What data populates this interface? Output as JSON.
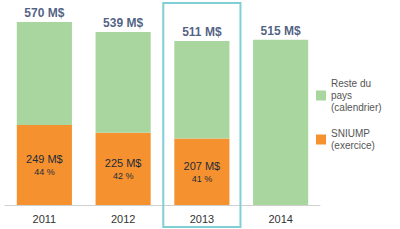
{
  "chart_data": {
    "type": "bar",
    "stacked": true,
    "categories": [
      "2011",
      "2012",
      "2013",
      "2014"
    ],
    "series": [
      {
        "name": "Reste du pays (calendrier)",
        "color": "#a9d69f",
        "values": [
          321,
          314,
          304,
          515
        ]
      },
      {
        "name": "SNIUMP (exercice)",
        "color": "#f5922f",
        "values": [
          249,
          225,
          207,
          null
        ],
        "value_labels": [
          "249 M$",
          "225 M$",
          "207 M$",
          null
        ],
        "shares": [
          44,
          42,
          41,
          null
        ],
        "share_labels": [
          "44 %",
          "42 %",
          "41 %",
          null
        ]
      }
    ],
    "totals": [
      570,
      539,
      511,
      515
    ],
    "total_labels": [
      "570 M$",
      "539 M$",
      "511 M$",
      "515 M$"
    ],
    "highlight_category": "2013",
    "ylim": [
      0,
      570
    ],
    "tick_labels": "x",
    "grid": false,
    "legend": "right",
    "data_labels": true
  }
}
